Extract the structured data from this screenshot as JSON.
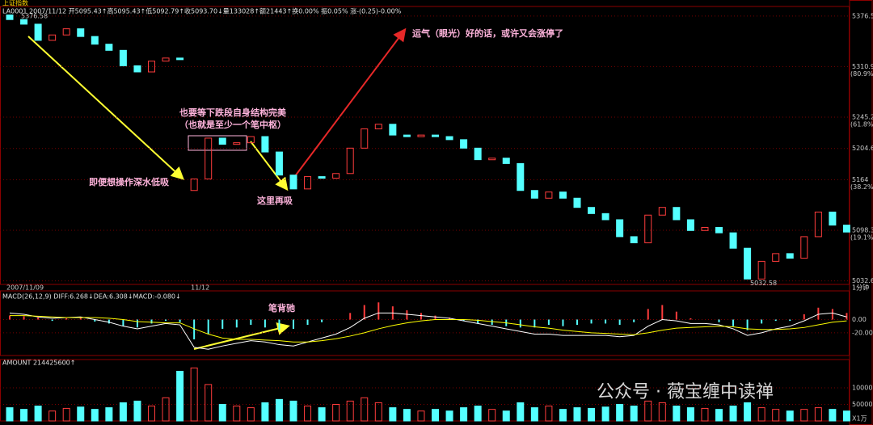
{
  "chart_data": [
    {
      "type": "candlestick",
      "title": "上证指数",
      "subtitle": "LA0001 2007/11/12 开5095.43↑高5095.43↑低5092.79↑收5093.70↓量133028↑额21443↑换0.00% 振0.05% 涨-(0.25)-0.00%",
      "period": "1分钟",
      "categories": [
        "2007/11/09",
        null,
        null,
        null,
        null,
        null,
        null,
        null,
        null,
        null,
        null,
        null,
        null,
        "11/12",
        null,
        null,
        null,
        null,
        null,
        null,
        null,
        null,
        null,
        null,
        null,
        null,
        null,
        null,
        null,
        null,
        null,
        null,
        null,
        null,
        null,
        null,
        null,
        null,
        null,
        null,
        null,
        null,
        null,
        null,
        null,
        null,
        null,
        null,
        null,
        null,
        null,
        null,
        null,
        null,
        null,
        null,
        null,
        null,
        null,
        null
      ],
      "open": [
        5378,
        5372,
        5366,
        5345,
        5352,
        5360,
        5350,
        5340,
        5332,
        5312,
        5304,
        5318,
        5322,
        5150,
        5165,
        5218,
        5210,
        5212,
        5220,
        5200,
        5170,
        5152,
        5168,
        5166,
        5172,
        5205,
        5230,
        5236,
        5222,
        5220,
        5222,
        5220,
        5216,
        5205,
        5190,
        5192,
        5185,
        5150,
        5140,
        5148,
        5140,
        5128,
        5120,
        5112,
        5090,
        5082,
        5118,
        5128,
        5112,
        5098,
        5102,
        5095,
        5075,
        5035,
        5058,
        5068,
        5062,
        5090,
        5122,
        5105
      ],
      "close": [
        5372,
        5366,
        5345,
        5352,
        5360,
        5350,
        5340,
        5332,
        5312,
        5304,
        5318,
        5322,
        5320,
        5165,
        5218,
        5210,
        5212,
        5220,
        5200,
        5170,
        5152,
        5168,
        5166,
        5172,
        5205,
        5230,
        5236,
        5222,
        5220,
        5222,
        5220,
        5216,
        5205,
        5190,
        5192,
        5185,
        5150,
        5140,
        5148,
        5140,
        5128,
        5120,
        5112,
        5090,
        5082,
        5118,
        5128,
        5112,
        5098,
        5102,
        5095,
        5075,
        5035,
        5058,
        5068,
        5062,
        5090,
        5122,
        5105,
        5096
      ],
      "up_color": "#ff3c3c",
      "down_color": "#54ffff",
      "ylim": [
        5028,
        5389
      ],
      "yticks": [
        5376.5,
        5310.9,
        5245.2,
        5204.6,
        5164.0,
        5098.3,
        5032.6
      ],
      "ytick_notes": [
        null,
        "(80.9%)",
        "(61.8%)",
        null,
        "(38.2%)",
        "(19.1%)",
        null
      ],
      "extremes": [
        5376.58,
        5032.58
      ],
      "annotations": [
        "即便想操作深水低吸",
        "也要等下跌段自身结构完美",
        "（也就是至少一个笔中枢）",
        "这里再吸",
        "运气（眼光）好的话，或许又会涨停了"
      ],
      "grid": true
    },
    {
      "type": "macd",
      "title": "MACD(26,12,9) DIFF:6.268↓DEA:6.308↓MACD:-0.080↓",
      "hist": [
        6,
        5,
        3,
        -2,
        2,
        4,
        -3,
        -6,
        -10,
        -12,
        -6,
        -2,
        -4,
        -30,
        -22,
        -14,
        -12,
        -8,
        -12,
        -16,
        -14,
        -8,
        -4,
        0,
        10,
        22,
        26,
        20,
        14,
        10,
        6,
        3,
        -2,
        -6,
        -8,
        -10,
        -12,
        -12,
        -8,
        -10,
        -8,
        -6,
        -6,
        -8,
        -4,
        16,
        22,
        12,
        2,
        0,
        -4,
        -10,
        -16,
        -6,
        -2,
        -2,
        8,
        18,
        16,
        10
      ],
      "diff": [
        10,
        8,
        4,
        2,
        3,
        4,
        0,
        -4,
        -10,
        -14,
        -10,
        -6,
        -8,
        -42,
        -45,
        -40,
        -36,
        -32,
        -34,
        -38,
        -40,
        -34,
        -28,
        -22,
        -12,
        2,
        10,
        10,
        8,
        6,
        4,
        2,
        -2,
        -6,
        -10,
        -14,
        -18,
        -22,
        -22,
        -24,
        -24,
        -24,
        -24,
        -26,
        -24,
        -10,
        0,
        -2,
        -6,
        -6,
        -8,
        -14,
        -24,
        -20,
        -14,
        -10,
        -2,
        8,
        10,
        4
      ],
      "dea": [
        6,
        6,
        5,
        4,
        3,
        3,
        3,
        2,
        0,
        -3,
        -4,
        -5,
        -5,
        -14,
        -22,
        -28,
        -30,
        -30,
        -31,
        -32,
        -34,
        -34,
        -32,
        -29,
        -25,
        -20,
        -14,
        -9,
        -5,
        -2,
        0,
        0,
        0,
        -1,
        -3,
        -5,
        -8,
        -11,
        -13,
        -16,
        -18,
        -20,
        -21,
        -22,
        -23,
        -20,
        -16,
        -13,
        -12,
        -11,
        -10,
        -11,
        -14,
        -15,
        -15,
        -14,
        -12,
        -8,
        -4,
        -2
      ],
      "diff_color": "#ffffff",
      "dea_color": "#ffff00",
      "ylim": [
        -52,
        41
      ],
      "yticks": [
        {
          "value": 0,
          "label": "0.00"
        },
        {
          "value": -20,
          "label": "-20.00"
        }
      ],
      "annotations": [
        "笔背驰"
      ]
    },
    {
      "type": "bar",
      "title": "AMOUNT 214425600↑",
      "unit": "X1万",
      "values": [
        40000,
        35000,
        45000,
        30000,
        38000,
        42000,
        35000,
        40000,
        55000,
        60000,
        45000,
        70000,
        150000,
        160000,
        110000,
        50000,
        45000,
        40000,
        55000,
        65000,
        60000,
        45000,
        40000,
        50000,
        60000,
        70000,
        55000,
        40000,
        35000,
        30000,
        35000,
        30000,
        40000,
        45000,
        35000,
        30000,
        55000,
        40000,
        45000,
        35000,
        40000,
        38000,
        42000,
        50000,
        45000,
        60000,
        55000,
        45000,
        40000,
        38000,
        35000,
        45000,
        55000,
        40000,
        35000,
        30000,
        35000,
        40000,
        35000,
        30000
      ],
      "ylim": [
        0,
        178000
      ],
      "yticks": [
        50000,
        100000
      ]
    }
  ],
  "watermark": "公众号 · 薇宝缠中读禅"
}
